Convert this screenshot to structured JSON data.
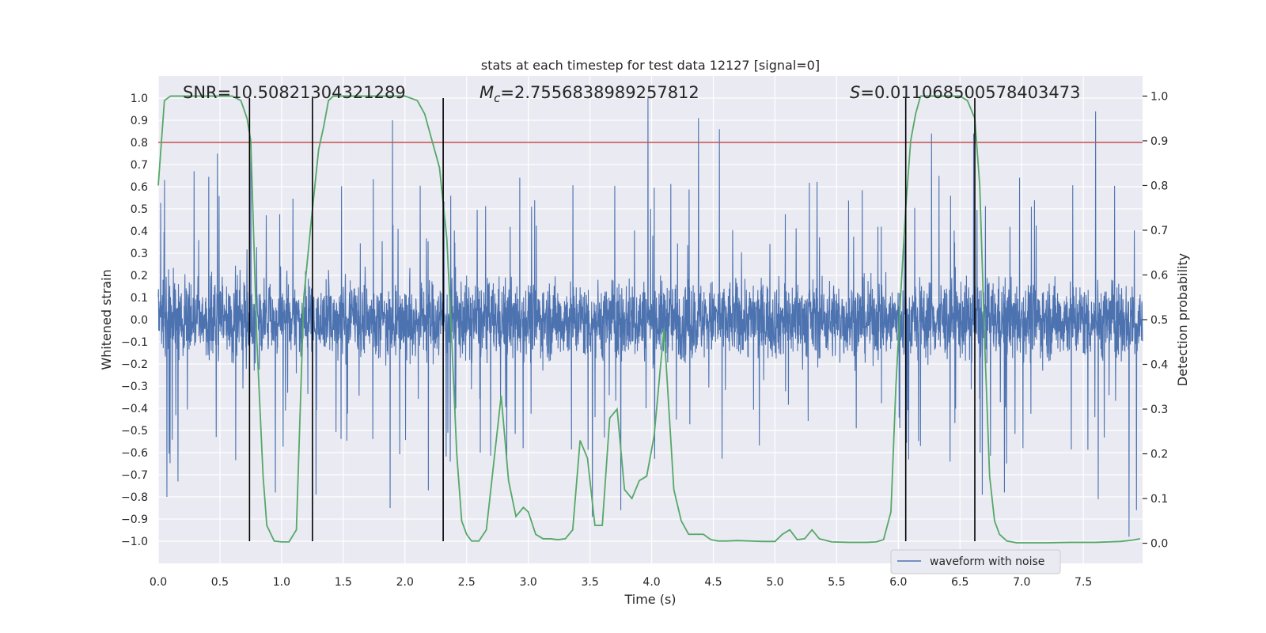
{
  "chart_data": {
    "type": "line",
    "title": "stats at each timestep for test data 12127 [signal=0]",
    "xlabel": "Time (s)",
    "ylabel_left": "Whitened strain",
    "ylabel_right": "Detection probability",
    "xlim": [
      0.0,
      7.98
    ],
    "ylim_left": [
      -1.1,
      1.1
    ],
    "ylim_right": [
      -0.045,
      1.045
    ],
    "x_ticks": [
      0.0,
      0.5,
      1.0,
      1.5,
      2.0,
      2.5,
      3.0,
      3.5,
      4.0,
      4.5,
      5.0,
      5.5,
      6.0,
      6.5,
      7.0,
      7.5
    ],
    "x_tick_labels": [
      "0.0",
      "0.5",
      "1.0",
      "1.5",
      "2.0",
      "2.5",
      "3.0",
      "3.5",
      "4.0",
      "4.5",
      "5.0",
      "5.5",
      "6.0",
      "6.5",
      "7.0",
      "7.5"
    ],
    "y_left_ticks": [
      1.0,
      0.9,
      0.8,
      0.7,
      0.6,
      0.5,
      0.4,
      0.3,
      0.2,
      0.1,
      0.0,
      -0.1,
      -0.2,
      -0.3,
      -0.4,
      -0.5,
      -0.6,
      -0.7,
      -0.8,
      -0.9,
      -1.0
    ],
    "y_left_tick_labels": [
      "1.0",
      "0.9",
      "0.8",
      "0.7",
      "0.6",
      "0.5",
      "0.4",
      "0.3",
      "0.2",
      "0.1",
      "0.0",
      "−0.1",
      "−0.2",
      "−0.3",
      "−0.4",
      "−0.5",
      "−0.6",
      "−0.7",
      "−0.8",
      "−0.9",
      "−1.0"
    ],
    "y_right_ticks": [
      1.0,
      0.9,
      0.8,
      0.7,
      0.6,
      0.5,
      0.4,
      0.3,
      0.2,
      0.1,
      0.0
    ],
    "y_right_tick_labels": [
      "1.0",
      "0.9",
      "0.8",
      "0.7",
      "0.6",
      "0.5",
      "0.4",
      "0.3",
      "0.2",
      "0.1",
      "0.0"
    ],
    "annotations": {
      "snr": "SNR=10.50821304321289",
      "mc_symbol": "M",
      "mc_sub": "c",
      "mc_value": "=2.7556838989257812",
      "s_symbol": "S",
      "s_value": "=0.011068500578403473"
    },
    "threshold": {
      "value": 0.8,
      "axis": "left",
      "color": "#c44e52"
    },
    "vertical_lines": [
      0.74,
      1.25,
      2.31,
      6.06,
      6.62
    ],
    "vertical_line_range": [
      -1.0,
      1.0
    ],
    "waveform": {
      "name": "waveform with noise",
      "color": "#4c72b0",
      "sample_interval": 0.00195,
      "typical_positive_envelope": 0.45,
      "typical_negative_envelope": -0.45,
      "peaks": [
        {
          "x": 0.05,
          "y": 0.63
        },
        {
          "x": 0.29,
          "y": 0.67
        },
        {
          "x": 0.48,
          "y": 0.75
        },
        {
          "x": 0.75,
          "y": 0.78
        },
        {
          "x": 1.9,
          "y": 0.9
        },
        {
          "x": 1.88,
          "y": 0.76
        },
        {
          "x": 3.97,
          "y": 1.0
        },
        {
          "x": 4.38,
          "y": 0.91
        },
        {
          "x": 4.55,
          "y": 0.86
        },
        {
          "x": 6.27,
          "y": 0.84
        },
        {
          "x": 6.61,
          "y": 0.84
        },
        {
          "x": 7.6,
          "y": 0.94
        }
      ],
      "troughs": [
        {
          "x": 0.07,
          "y": -0.8
        },
        {
          "x": 0.16,
          "y": -0.73
        },
        {
          "x": 0.95,
          "y": -0.78
        },
        {
          "x": 1.28,
          "y": -0.79
        },
        {
          "x": 1.88,
          "y": -0.85
        },
        {
          "x": 2.19,
          "y": -0.77
        },
        {
          "x": 3.52,
          "y": -0.89
        },
        {
          "x": 3.75,
          "y": -0.86
        },
        {
          "x": 6.68,
          "y": -0.79
        },
        {
          "x": 6.86,
          "y": -0.78
        },
        {
          "x": 7.62,
          "y": -0.81
        },
        {
          "x": 7.87,
          "y": -0.98
        },
        {
          "x": 7.93,
          "y": -0.86
        }
      ]
    },
    "probability": {
      "name": "detection probability",
      "color": "#55a868",
      "axis": "right",
      "x": [
        0.0,
        0.05,
        0.1,
        0.15,
        0.2,
        0.3,
        0.4,
        0.5,
        0.6,
        0.67,
        0.72,
        0.75,
        0.8,
        0.85,
        0.88,
        0.94,
        1.0,
        1.06,
        1.12,
        1.18,
        1.24,
        1.3,
        1.34,
        1.38,
        1.42,
        1.46,
        1.5,
        1.6,
        1.7,
        1.8,
        1.9,
        2.0,
        2.1,
        2.16,
        2.22,
        2.28,
        2.34,
        2.38,
        2.42,
        2.46,
        2.5,
        2.54,
        2.6,
        2.66,
        2.72,
        2.78,
        2.84,
        2.9,
        2.96,
        3.0,
        3.06,
        3.12,
        3.18,
        3.24,
        3.3,
        3.36,
        3.42,
        3.48,
        3.54,
        3.6,
        3.66,
        3.72,
        3.78,
        3.84,
        3.9,
        3.96,
        4.02,
        4.1,
        4.14,
        4.18,
        4.24,
        4.3,
        4.36,
        4.42,
        4.48,
        4.54,
        4.6,
        4.7,
        4.8,
        4.9,
        5.0,
        5.06,
        5.12,
        5.18,
        5.24,
        5.3,
        5.36,
        5.46,
        5.6,
        5.74,
        5.82,
        5.88,
        5.94,
        5.98,
        6.02,
        6.06,
        6.1,
        6.14,
        6.18,
        6.22,
        6.3,
        6.4,
        6.5,
        6.56,
        6.62,
        6.66,
        6.7,
        6.74,
        6.78,
        6.82,
        6.88,
        6.96,
        7.2,
        7.4,
        7.6,
        7.8,
        7.9,
        7.96
      ],
      "y": [
        0.8,
        0.99,
        1.0,
        1.0,
        1.0,
        1.0,
        1.0,
        1.0,
        1.0,
        0.99,
        0.95,
        0.9,
        0.45,
        0.15,
        0.04,
        0.005,
        0.003,
        0.003,
        0.03,
        0.55,
        0.72,
        0.88,
        0.93,
        0.99,
        1.0,
        1.0,
        1.0,
        1.0,
        1.0,
        1.0,
        1.0,
        1.0,
        0.99,
        0.96,
        0.9,
        0.84,
        0.68,
        0.45,
        0.2,
        0.05,
        0.02,
        0.005,
        0.005,
        0.03,
        0.18,
        0.33,
        0.14,
        0.06,
        0.08,
        0.07,
        0.02,
        0.01,
        0.01,
        0.008,
        0.01,
        0.03,
        0.23,
        0.19,
        0.04,
        0.04,
        0.28,
        0.3,
        0.12,
        0.1,
        0.14,
        0.15,
        0.24,
        0.48,
        0.3,
        0.12,
        0.05,
        0.02,
        0.02,
        0.02,
        0.008,
        0.005,
        0.005,
        0.006,
        0.005,
        0.004,
        0.004,
        0.02,
        0.03,
        0.008,
        0.01,
        0.03,
        0.01,
        0.003,
        0.002,
        0.002,
        0.003,
        0.008,
        0.07,
        0.35,
        0.56,
        0.75,
        0.9,
        0.96,
        1.0,
        1.0,
        1.0,
        1.0,
        1.0,
        0.99,
        0.95,
        0.8,
        0.45,
        0.15,
        0.05,
        0.02,
        0.005,
        0.001,
        0.001,
        0.002,
        0.002,
        0.004,
        0.007,
        0.01
      ]
    },
    "legend": {
      "entries": [
        "waveform with noise"
      ],
      "placement": "lower-right"
    },
    "colors": {
      "axes_bg": "#eaeaf2",
      "grid": "#ffffff",
      "vline": "#000000"
    }
  }
}
